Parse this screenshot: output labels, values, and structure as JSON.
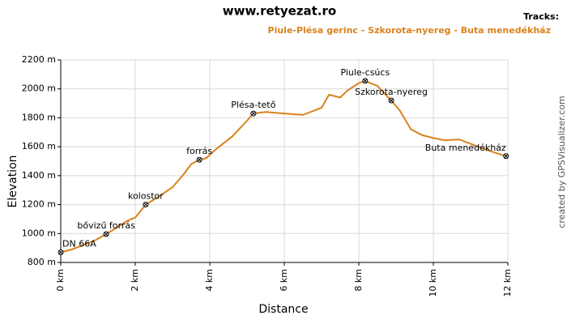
{
  "chart_data": {
    "type": "line",
    "title": "www.retyezat.ro",
    "legend_title": "Tracks:",
    "xlabel": "Distance",
    "ylabel": "Elevation",
    "credit": "created by GPSVisualizer.com",
    "x": [
      0,
      0.3,
      0.6,
      0.9,
      1.22,
      1.5,
      1.8,
      2.0,
      2.28,
      2.6,
      3.0,
      3.3,
      3.5,
      3.72,
      3.9,
      4.2,
      4.6,
      5.0,
      5.17,
      5.5,
      6.0,
      6.5,
      7.0,
      7.2,
      7.5,
      7.7,
      8.0,
      8.17,
      8.5,
      8.87,
      9.1,
      9.4,
      9.7,
      10.0,
      10.3,
      10.7,
      11.0,
      11.4,
      11.95
    ],
    "series": [
      {
        "name": "Piule-Plésa gerinc - Szkorota-nyereg - Buta menedékház",
        "color": "#d9821e",
        "values": [
          870,
          890,
          920,
          950,
          996,
          1040,
          1090,
          1110,
          1200,
          1250,
          1320,
          1410,
          1480,
          1510,
          1520,
          1590,
          1670,
          1780,
          1830,
          1840,
          1830,
          1820,
          1870,
          1960,
          1940,
          1990,
          2040,
          2055,
          2020,
          1920,
          1850,
          1720,
          1680,
          1660,
          1645,
          1650,
          1620,
          1580,
          1535
        ]
      }
    ],
    "waypoints": [
      {
        "label": "DN 66A",
        "x": 0,
        "y": 870
      },
      {
        "label": "bővizű forrás",
        "x": 1.22,
        "y": 996
      },
      {
        "label": "kolostor",
        "x": 2.28,
        "y": 1200
      },
      {
        "label": "forrás",
        "x": 3.72,
        "y": 1510
      },
      {
        "label": "Plésa-tető",
        "x": 5.17,
        "y": 1830
      },
      {
        "label": "Piule-csúcs",
        "x": 8.17,
        "y": 2055
      },
      {
        "label": "Szkorota-nyereg",
        "x": 8.87,
        "y": 1920
      },
      {
        "label": "Buta menedékház",
        "x": 11.95,
        "y": 1535
      }
    ],
    "xlim": [
      0,
      12
    ],
    "xticks": [
      {
        "value": 0,
        "label": "0 km"
      },
      {
        "value": 2,
        "label": "2 km"
      },
      {
        "value": 4,
        "label": "4 km"
      },
      {
        "value": 6,
        "label": "6 km"
      },
      {
        "value": 8,
        "label": "8 km"
      },
      {
        "value": 10,
        "label": "10 km"
      },
      {
        "value": 12,
        "label": "12 km"
      }
    ],
    "ylim": [
      800,
      2200
    ],
    "yticks": [
      {
        "value": 800,
        "label": "800 m"
      },
      {
        "value": 1000,
        "label": "1000 m"
      },
      {
        "value": 1200,
        "label": "1200 m"
      },
      {
        "value": 1400,
        "label": "1400 m"
      },
      {
        "value": 1600,
        "label": "1600 m"
      },
      {
        "value": 1800,
        "label": "1800 m"
      },
      {
        "value": 2000,
        "label": "2000 m"
      },
      {
        "value": 2200,
        "label": "2200 m"
      }
    ],
    "grid": true
  }
}
